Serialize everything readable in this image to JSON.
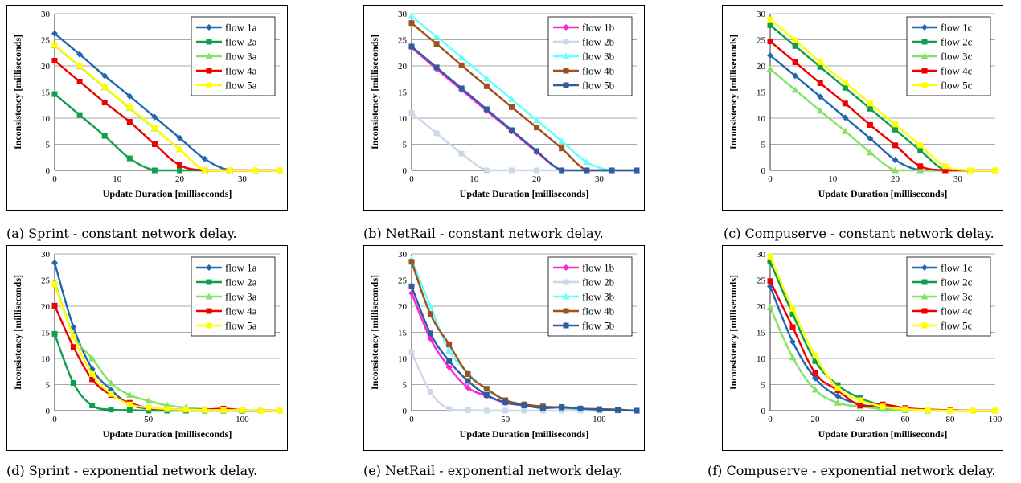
{
  "chart_data": [
    {
      "type": "line",
      "caption": "(a) Sprint - constant network delay.",
      "xlabel": "Update Duration [milliseconds]",
      "ylabel": "Inconsistency [milliseconds]",
      "xlim": [
        0,
        36
      ],
      "ylim": [
        0,
        30
      ],
      "xticks": [
        0,
        10,
        20,
        30
      ],
      "yticks": [
        0,
        5,
        10,
        15,
        20,
        25,
        30
      ],
      "grid": true,
      "legend": "top-right",
      "x": [
        0,
        4,
        8,
        12,
        16,
        20,
        24,
        28,
        32,
        36
      ],
      "series": [
        {
          "name": "flow 1a",
          "color": "#2066b0",
          "marker": "diamond",
          "values": [
            26.2,
            22.2,
            18.1,
            14.2,
            10.2,
            6.2,
            2.2,
            0,
            0,
            0
          ]
        },
        {
          "name": "flow 2a",
          "color": "#0f9f4c",
          "marker": "square",
          "values": [
            14.6,
            10.6,
            6.6,
            2.3,
            0,
            0,
            0,
            0,
            0,
            0
          ]
        },
        {
          "name": "flow 3a",
          "color": "#86e266",
          "marker": "triangle",
          "values": [
            23.9,
            19.9,
            15.9,
            11.9,
            8.0,
            4.0,
            0,
            0,
            0,
            0
          ]
        },
        {
          "name": "flow 4a",
          "color": "#ee0000",
          "marker": "square",
          "values": [
            21.0,
            17.0,
            13.0,
            9.3,
            5.0,
            1.0,
            0,
            0,
            0,
            0
          ]
        },
        {
          "name": "flow 5a",
          "color": "#ffff00",
          "marker": "square",
          "values": [
            24.0,
            20.0,
            16.0,
            12.0,
            8.1,
            4.0,
            0,
            0,
            0,
            0
          ]
        }
      ]
    },
    {
      "type": "line",
      "caption": "(b) NetRail - constant network delay.",
      "xlabel": "Update Duration [milliseconds]",
      "ylabel": "Inconsistency [milliseconds]",
      "xlim": [
        0,
        36
      ],
      "ylim": [
        0,
        30
      ],
      "xticks": [
        0,
        10,
        20,
        30
      ],
      "yticks": [
        0,
        5,
        10,
        15,
        20,
        25,
        30
      ],
      "grid": true,
      "legend": "top-right",
      "x": [
        0,
        4,
        8,
        12,
        16,
        20,
        24,
        28,
        32,
        36
      ],
      "series": [
        {
          "name": "flow 1b",
          "color": "#ff22dd",
          "marker": "diamond",
          "values": [
            23.5,
            19.4,
            15.4,
            11.4,
            7.5,
            3.5,
            0,
            0,
            0,
            0
          ]
        },
        {
          "name": "flow 2b",
          "color": "#c9d8ea",
          "marker": "square",
          "values": [
            11.0,
            7.1,
            3.2,
            0,
            0,
            0,
            0,
            0,
            0,
            0
          ]
        },
        {
          "name": "flow 3b",
          "color": "#66ffff",
          "marker": "triangle",
          "values": [
            29.5,
            25.6,
            21.6,
            17.6,
            13.6,
            9.6,
            5.6,
            1.6,
            0,
            0
          ]
        },
        {
          "name": "flow 4b",
          "color": "#a0501a",
          "marker": "square",
          "values": [
            28.2,
            24.2,
            20.1,
            16.1,
            12.1,
            8.2,
            4.2,
            0,
            0,
            0
          ]
        },
        {
          "name": "flow 5b",
          "color": "#2f5d9c",
          "marker": "square",
          "values": [
            23.7,
            19.7,
            15.7,
            11.7,
            7.7,
            3.7,
            0,
            0,
            0,
            0
          ]
        }
      ]
    },
    {
      "type": "line",
      "caption": "(c) Compuserve - constant network delay.",
      "xlabel": "Update Duration [milliseconds]",
      "ylabel": "Inconsistency [milliseconds]",
      "xlim": [
        0,
        36
      ],
      "ylim": [
        0,
        30
      ],
      "xticks": [
        0,
        10,
        20,
        30
      ],
      "yticks": [
        0,
        5,
        10,
        15,
        20,
        25,
        30
      ],
      "grid": true,
      "legend": "top-right",
      "x": [
        0,
        4,
        8,
        12,
        16,
        20,
        24,
        28,
        32,
        36
      ],
      "series": [
        {
          "name": "flow 1c",
          "color": "#2066b0",
          "marker": "diamond",
          "values": [
            22.0,
            18.1,
            14.1,
            10.1,
            6.1,
            2.0,
            0,
            0,
            0,
            0
          ]
        },
        {
          "name": "flow 2c",
          "color": "#0f9f4c",
          "marker": "square",
          "values": [
            27.8,
            23.8,
            19.8,
            15.8,
            11.8,
            7.8,
            3.8,
            0,
            0,
            0
          ]
        },
        {
          "name": "flow 3c",
          "color": "#86e266",
          "marker": "triangle",
          "values": [
            19.4,
            15.4,
            11.4,
            7.5,
            3.4,
            0,
            0,
            0,
            0,
            0
          ]
        },
        {
          "name": "flow 4c",
          "color": "#ee0000",
          "marker": "square",
          "values": [
            24.7,
            20.7,
            16.7,
            12.8,
            8.7,
            4.8,
            0.8,
            0,
            0,
            0
          ]
        },
        {
          "name": "flow 5c",
          "color": "#ffff00",
          "marker": "square",
          "values": [
            28.9,
            24.9,
            20.7,
            16.8,
            12.8,
            8.8,
            4.8,
            0.8,
            0,
            0
          ]
        }
      ]
    },
    {
      "type": "line",
      "caption": "(d) Sprint - exponential network delay.",
      "xlabel": "Update Duration [milliseconds]",
      "ylabel": "Inconsistency [milliseconds]",
      "xlim": [
        0,
        120
      ],
      "ylim": [
        0,
        30
      ],
      "xticks": [
        0,
        50,
        100
      ],
      "yticks": [
        0,
        5,
        10,
        15,
        20,
        25,
        30
      ],
      "grid": true,
      "legend": "top-right",
      "x": [
        0,
        10,
        20,
        30,
        40,
        50,
        60,
        70,
        80,
        90,
        100,
        110,
        120
      ],
      "series": [
        {
          "name": "flow 1a",
          "color": "#2066b0",
          "marker": "diamond",
          "values": [
            28.3,
            16.0,
            8.0,
            4.0,
            1.2,
            0.4,
            0.2,
            0.1,
            0.1,
            0.1,
            0,
            0,
            0
          ]
        },
        {
          "name": "flow 2a",
          "color": "#0f9f4c",
          "marker": "square",
          "values": [
            14.7,
            5.3,
            1.0,
            0.2,
            0.1,
            0,
            0,
            0,
            0,
            0,
            0,
            0,
            0
          ]
        },
        {
          "name": "flow 3a",
          "color": "#86e266",
          "marker": "triangle",
          "values": [
            24.7,
            14.5,
            10.0,
            5.3,
            3.0,
            1.9,
            1.0,
            0.6,
            0.3,
            0.2,
            0.1,
            0,
            0
          ]
        },
        {
          "name": "flow 4a",
          "color": "#ee0000",
          "marker": "square",
          "values": [
            20.1,
            12.2,
            6.0,
            3.0,
            1.5,
            0.5,
            0.3,
            0.2,
            0.2,
            0.4,
            0.1,
            0,
            0
          ]
        },
        {
          "name": "flow 5a",
          "color": "#ffff00",
          "marker": "square",
          "values": [
            24.2,
            14.2,
            7.0,
            3.2,
            1.2,
            0.6,
            0.3,
            0.2,
            0.1,
            0.1,
            0.1,
            0,
            0
          ]
        }
      ]
    },
    {
      "type": "line",
      "caption": "(e) NetRail - exponential network delay.",
      "xlabel": "Update Duration [milliseconds]",
      "ylabel": "Inconsistency [milliseconds]",
      "xlim": [
        0,
        120
      ],
      "ylim": [
        0,
        30
      ],
      "xticks": [
        0,
        50,
        100
      ],
      "yticks": [
        0,
        5,
        10,
        15,
        20,
        25,
        30
      ],
      "grid": true,
      "legend": "top-right",
      "x": [
        0,
        10,
        20,
        30,
        40,
        50,
        60,
        70,
        80,
        90,
        100,
        110,
        120
      ],
      "series": [
        {
          "name": "flow 1b",
          "color": "#ff22dd",
          "marker": "diamond",
          "values": [
            22.5,
            13.8,
            8.3,
            4.4,
            2.8,
            1.5,
            1.0,
            0.6,
            0.5,
            0.3,
            0.2,
            0.1,
            0
          ]
        },
        {
          "name": "flow 2b",
          "color": "#c9d8ea",
          "marker": "square",
          "values": [
            11.2,
            3.6,
            0.3,
            0.1,
            0,
            0,
            0,
            0,
            0,
            0,
            0,
            0,
            0
          ]
        },
        {
          "name": "flow 3b",
          "color": "#66ffff",
          "marker": "triangle",
          "values": [
            29.0,
            20.0,
            11.5,
            7.2,
            4.0,
            2.0,
            1.2,
            0.7,
            0.5,
            0.3,
            0.2,
            0.1,
            0
          ]
        },
        {
          "name": "flow 4b",
          "color": "#a0501a",
          "marker": "square",
          "values": [
            28.5,
            18.5,
            12.7,
            7.0,
            4.2,
            2.0,
            1.2,
            0.8,
            0.6,
            0.4,
            0.3,
            0.2,
            0
          ]
        },
        {
          "name": "flow 5b",
          "color": "#2f5d9c",
          "marker": "square",
          "values": [
            23.8,
            14.8,
            9.5,
            5.7,
            3.0,
            1.6,
            1.0,
            0.5,
            0.7,
            0.4,
            0.2,
            0.1,
            0
          ]
        }
      ]
    },
    {
      "type": "line",
      "caption": "(f) Compuserve - exponential network delay.",
      "xlabel": "Update Duration [milliseconds]",
      "ylabel": "Inconsistency [milliseconds]",
      "xlim": [
        0,
        100
      ],
      "ylim": [
        0,
        30
      ],
      "xticks": [
        0,
        20,
        40,
        60,
        80,
        100
      ],
      "yticks": [
        0,
        5,
        10,
        15,
        20,
        25,
        30
      ],
      "grid": true,
      "legend": "top-right",
      "x": [
        0,
        10,
        20,
        30,
        40,
        50,
        60,
        70,
        80,
        90,
        100
      ],
      "series": [
        {
          "name": "flow 1c",
          "color": "#2066b0",
          "marker": "diamond",
          "values": [
            23.8,
            13.2,
            6.2,
            2.8,
            1.2,
            0.5,
            0.2,
            0.1,
            0,
            0,
            0
          ]
        },
        {
          "name": "flow 2c",
          "color": "#0f9f4c",
          "marker": "square",
          "values": [
            28.5,
            18.5,
            9.5,
            4.9,
            2.4,
            1.0,
            0.4,
            0.2,
            0.1,
            0,
            0
          ]
        },
        {
          "name": "flow 3c",
          "color": "#86e266",
          "marker": "triangle",
          "values": [
            19.8,
            10.2,
            4.0,
            1.5,
            0.8,
            0.3,
            0.1,
            0,
            0,
            0,
            0
          ]
        },
        {
          "name": "flow 4c",
          "color": "#ee0000",
          "marker": "square",
          "values": [
            24.8,
            16.0,
            7.2,
            3.9,
            1.0,
            1.2,
            0.5,
            0.2,
            0.1,
            0,
            0
          ]
        },
        {
          "name": "flow 5c",
          "color": "#ffff00",
          "marker": "square",
          "values": [
            29.5,
            19.5,
            10.5,
            4.3,
            2.0,
            0.8,
            0.3,
            0.1,
            0,
            0,
            0
          ]
        }
      ]
    }
  ]
}
